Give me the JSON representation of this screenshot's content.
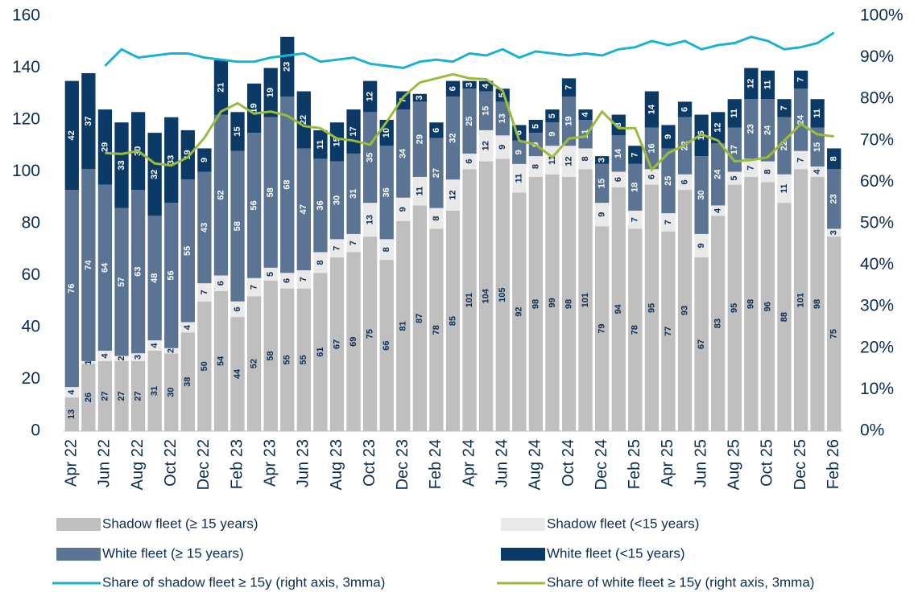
{
  "chart_data": {
    "type": "bar",
    "stacked": true,
    "categories": [
      "Apr 22",
      null,
      "Jun 22",
      null,
      "Aug 22",
      null,
      "Oct 22",
      null,
      "Dec 22",
      null,
      "Feb 23",
      null,
      "Apr 23",
      null,
      "Jun 23",
      null,
      "Aug 23",
      null,
      "Oct 23",
      null,
      "Dec 23",
      null,
      "Feb 24",
      null,
      "Apr 24",
      null,
      "Jun 24",
      null,
      "Aug 24",
      null,
      "Oct 24",
      null,
      "Dec 24",
      null,
      "Feb 25",
      null,
      "Apr 25",
      null,
      "Jun 25",
      null,
      "Aug 25",
      null,
      "Oct 25",
      null,
      "Dec 25",
      null,
      "Feb 26"
    ],
    "series": [
      {
        "name": "Shadow fleet (≥ 15 years)",
        "color": "#bfbfbf",
        "label_color": "#0b2d52",
        "values": [
          13,
          26,
          27,
          27,
          27,
          31,
          30,
          38,
          50,
          54,
          44,
          52,
          58,
          55,
          55,
          61,
          67,
          69,
          75,
          66,
          81,
          87,
          78,
          85,
          101,
          104,
          105,
          92,
          98,
          99,
          98,
          101,
          79,
          94,
          78,
          95,
          77,
          93,
          67,
          83,
          95,
          98,
          96,
          88,
          101,
          98,
          75
        ]
      },
      {
        "name": "Shadow fleet (<15 years)",
        "color": "#e9e9e9",
        "label_color": "#0b2d52",
        "values": [
          4,
          1,
          4,
          2,
          3,
          4,
          2,
          4,
          7,
          6,
          6,
          7,
          5,
          6,
          7,
          8,
          7,
          7,
          13,
          8,
          9,
          11,
          8,
          12,
          6,
          12,
          9,
          11,
          8,
          11,
          12,
          8,
          9,
          6,
          7,
          6,
          7,
          6,
          9,
          4,
          5,
          7,
          8,
          11,
          7,
          4,
          3
        ]
      },
      {
        "name": "White fleet (≥ 15 years)",
        "color": "#5b7493",
        "label_color": "#ffffff",
        "values": [
          76,
          74,
          64,
          57,
          63,
          48,
          56,
          55,
          43,
          62,
          58,
          56,
          58,
          68,
          47,
          36,
          30,
          31,
          35,
          36,
          34,
          29,
          27,
          32,
          25,
          15,
          13,
          9,
          9,
          9,
          19,
          11,
          15,
          14,
          18,
          16,
          25,
          22,
          30,
          24,
          17,
          23,
          24,
          22,
          24,
          15,
          23
        ]
      },
      {
        "name": "White fleet (<15 years)",
        "color": "#0c3a66",
        "label_color": "#ffffff",
        "values": [
          42,
          37,
          29,
          33,
          30,
          32,
          33,
          19,
          9,
          21,
          15,
          19,
          19,
          23,
          22,
          11,
          15,
          17,
          12,
          10,
          7,
          3,
          6,
          6,
          3,
          4,
          5,
          6,
          5,
          5,
          7,
          4,
          3,
          8,
          7,
          14,
          9,
          6,
          16,
          12,
          11,
          12,
          11,
          7,
          7,
          11,
          8
        ]
      },
      {
        "name": "Share of shadow fleet ≥ 15y (right axis, 3mma)",
        "color": "#1ab2d2",
        "axis": "y2",
        "line": true,
        "values": [
          null,
          null,
          88,
          92,
          90,
          90.5,
          91,
          91,
          90,
          89.5,
          89,
          89,
          90,
          90.5,
          91,
          89,
          89.5,
          90,
          88.5,
          88,
          87.5,
          89,
          89.5,
          89,
          91,
          90.5,
          92,
          90,
          91.5,
          91,
          90.5,
          91,
          90.5,
          92,
          92.5,
          94,
          93,
          94,
          92,
          93,
          93.5,
          95,
          94,
          92,
          92.5,
          93.5,
          96
        ]
      },
      {
        "name": "Share of white fleet ≥ 15y (right axis, 3mma)",
        "color": "#9bbb3c",
        "axis": "y2",
        "line": true,
        "values": [
          null,
          null,
          67,
          66.8,
          67.5,
          64.5,
          64,
          66,
          70.7,
          77,
          79,
          76.5,
          77,
          76,
          73.5,
          73,
          70.5,
          70,
          69,
          74.5,
          80.5,
          84,
          85,
          86,
          85,
          84.8,
          82,
          70,
          69,
          66,
          70.5,
          71,
          77,
          73,
          73,
          63,
          67,
          69,
          71.5,
          70,
          65,
          65.3,
          66,
          70,
          74,
          71.5,
          71
        ]
      }
    ],
    "ylim": [
      0,
      160
    ],
    "yticks": [
      0,
      20,
      40,
      60,
      80,
      100,
      120,
      140,
      160
    ],
    "y2lim": [
      0,
      100
    ],
    "y2ticks": [
      {
        "value": 0,
        "label": "0%"
      },
      {
        "value": 10,
        "label": "10%"
      },
      {
        "value": 20,
        "label": "20%"
      },
      {
        "value": 30,
        "label": "30%"
      },
      {
        "value": 40,
        "label": "40%"
      },
      {
        "value": 50,
        "label": "50%"
      },
      {
        "value": 60,
        "label": "60%"
      },
      {
        "value": 70,
        "label": "70%"
      },
      {
        "value": 80,
        "label": "80%"
      },
      {
        "value": 90,
        "label": "90%"
      },
      {
        "value": 100,
        "label": "100%"
      }
    ]
  }
}
